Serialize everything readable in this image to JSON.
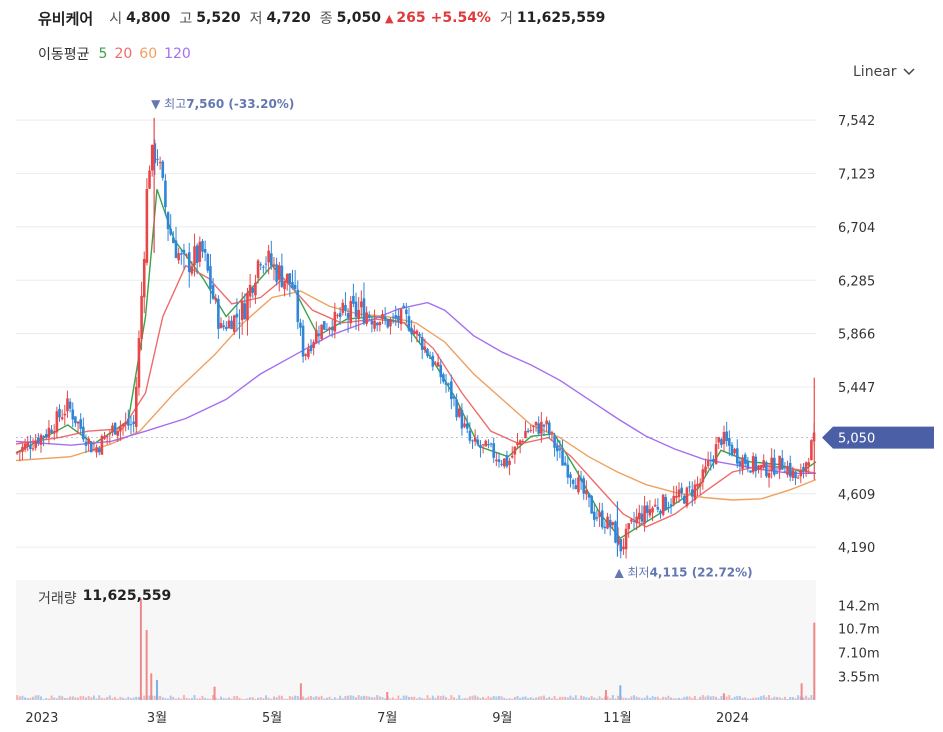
{
  "header": {
    "name": "유비케어",
    "open_label": "시",
    "open": "4,800",
    "high_label": "고",
    "high": "5,520",
    "low_label": "저",
    "low": "4,720",
    "close_label": "종",
    "close": "5,050",
    "change_arrow": "▲",
    "change": "265",
    "change_pct": "+5.54%",
    "volume_label": "거",
    "volume": "11,625,559"
  },
  "moving_average": {
    "label": "이동평균",
    "periods": [
      {
        "label": "5",
        "color": "#3aa34a"
      },
      {
        "label": "20",
        "color": "#ef6b6b"
      },
      {
        "label": "60",
        "color": "#f0a060"
      },
      {
        "label": "120",
        "color": "#a66ef0"
      }
    ]
  },
  "scale_selector": {
    "label": "Linear",
    "icon": "chevron-down-icon"
  },
  "colors": {
    "up": "#e8474a",
    "down": "#2f86d8",
    "current_badge": "#4a5fa5",
    "annotation": "#6477b0"
  },
  "chart_data": {
    "type": "candlestick",
    "y_ticks": [
      "7,542",
      "7,123",
      "6,704",
      "6,285",
      "5,866",
      "5,447",
      "4,609",
      "4,190"
    ],
    "y_tick_values": [
      7542,
      7123,
      6704,
      6285,
      5866,
      5447,
      4609,
      4190
    ],
    "ylim": [
      4050,
      7700
    ],
    "x_ticks": [
      "2023",
      "3월",
      "5월",
      "7월",
      "9월",
      "11월",
      "2024"
    ],
    "x_tick_months": [
      0,
      2,
      4,
      6,
      8,
      10,
      12
    ],
    "month_range": [
      -0.45,
      13.45
    ],
    "current_price": "5,050",
    "current_value": 5050,
    "high_annotation": {
      "arrow": "▼",
      "label": "최고",
      "value": "7,560 (-33.20%)",
      "price": 7560,
      "month": 1.95
    },
    "low_annotation": {
      "arrow": "▲",
      "label": "최저",
      "value": "4,115 (22.72%)",
      "price": 4115,
      "month": 10.0
    },
    "price_anchors": [
      [
        -0.45,
        4930
      ],
      [
        0.1,
        5100
      ],
      [
        0.45,
        5300
      ],
      [
        0.9,
        4950
      ],
      [
        1.3,
        5150
      ],
      [
        1.6,
        5150
      ],
      [
        1.75,
        6300
      ],
      [
        1.85,
        7200
      ],
      [
        2.0,
        7300
      ],
      [
        2.2,
        6700
      ],
      [
        2.45,
        6400
      ],
      [
        2.8,
        6500
      ],
      [
        3.1,
        5900
      ],
      [
        3.5,
        6050
      ],
      [
        3.8,
        6500
      ],
      [
        4.1,
        6350
      ],
      [
        4.35,
        6250
      ],
      [
        4.55,
        5700
      ],
      [
        4.8,
        5900
      ],
      [
        5.2,
        6000
      ],
      [
        5.6,
        6050
      ],
      [
        6.0,
        5950
      ],
      [
        6.3,
        6000
      ],
      [
        6.6,
        5800
      ],
      [
        7.1,
        5400
      ],
      [
        7.45,
        5000
      ],
      [
        7.75,
        4950
      ],
      [
        8.1,
        4850
      ],
      [
        8.4,
        5100
      ],
      [
        8.75,
        5150
      ],
      [
        9.0,
        4900
      ],
      [
        9.3,
        4700
      ],
      [
        9.6,
        4450
      ],
      [
        9.9,
        4350
      ],
      [
        10.05,
        4180
      ],
      [
        10.3,
        4400
      ],
      [
        10.6,
        4500
      ],
      [
        10.9,
        4550
      ],
      [
        11.2,
        4600
      ],
      [
        11.45,
        4700
      ],
      [
        11.8,
        5050
      ],
      [
        12.1,
        4900
      ],
      [
        12.5,
        4800
      ],
      [
        12.9,
        4850
      ],
      [
        13.15,
        4700
      ],
      [
        13.35,
        4960
      ],
      [
        13.45,
        5050
      ]
    ],
    "ma_series": [
      {
        "name": "5",
        "color": "#3aa34a",
        "points": [
          [
            -0.45,
            4930
          ],
          [
            0.45,
            5150
          ],
          [
            0.9,
            5000
          ],
          [
            1.5,
            5180
          ],
          [
            1.8,
            6000
          ],
          [
            2.0,
            7000
          ],
          [
            2.3,
            6600
          ],
          [
            2.8,
            6300
          ],
          [
            3.2,
            6000
          ],
          [
            3.6,
            6200
          ],
          [
            4.0,
            6400
          ],
          [
            4.4,
            6200
          ],
          [
            4.8,
            5850
          ],
          [
            5.3,
            5980
          ],
          [
            5.8,
            6000
          ],
          [
            6.3,
            5950
          ],
          [
            6.8,
            5650
          ],
          [
            7.2,
            5350
          ],
          [
            7.6,
            4980
          ],
          [
            8.1,
            4900
          ],
          [
            8.5,
            5060
          ],
          [
            8.9,
            5080
          ],
          [
            9.3,
            4780
          ],
          [
            9.7,
            4450
          ],
          [
            10.05,
            4260
          ],
          [
            10.4,
            4360
          ],
          [
            10.9,
            4500
          ],
          [
            11.4,
            4650
          ],
          [
            11.8,
            4950
          ],
          [
            12.3,
            4860
          ],
          [
            12.8,
            4840
          ],
          [
            13.2,
            4780
          ],
          [
            13.45,
            4860
          ]
        ]
      },
      {
        "name": "20",
        "color": "#ef6b6b",
        "points": [
          [
            -0.45,
            5000
          ],
          [
            0.3,
            5050
          ],
          [
            0.8,
            5100
          ],
          [
            1.4,
            5120
          ],
          [
            1.8,
            5400
          ],
          [
            2.1,
            6000
          ],
          [
            2.5,
            6400
          ],
          [
            2.9,
            6300
          ],
          [
            3.3,
            6100
          ],
          [
            3.8,
            6150
          ],
          [
            4.2,
            6300
          ],
          [
            4.7,
            6050
          ],
          [
            5.2,
            5950
          ],
          [
            5.8,
            5980
          ],
          [
            6.3,
            5950
          ],
          [
            6.8,
            5750
          ],
          [
            7.3,
            5400
          ],
          [
            7.8,
            5100
          ],
          [
            8.3,
            5000
          ],
          [
            8.8,
            5050
          ],
          [
            9.2,
            4900
          ],
          [
            9.7,
            4650
          ],
          [
            10.1,
            4450
          ],
          [
            10.5,
            4350
          ],
          [
            11.0,
            4450
          ],
          [
            11.5,
            4620
          ],
          [
            12.0,
            4780
          ],
          [
            12.5,
            4830
          ],
          [
            13.0,
            4810
          ],
          [
            13.45,
            4770
          ]
        ]
      },
      {
        "name": "60",
        "color": "#f0a060",
        "points": [
          [
            -0.45,
            4870
          ],
          [
            0.5,
            4900
          ],
          [
            1.2,
            5000
          ],
          [
            1.7,
            5100
          ],
          [
            2.3,
            5400
          ],
          [
            3.0,
            5700
          ],
          [
            3.5,
            5950
          ],
          [
            4.0,
            6150
          ],
          [
            4.5,
            6200
          ],
          [
            5.0,
            6080
          ],
          [
            5.5,
            6020
          ],
          [
            6.0,
            6000
          ],
          [
            6.5,
            5950
          ],
          [
            7.0,
            5800
          ],
          [
            7.5,
            5550
          ],
          [
            8.0,
            5350
          ],
          [
            8.5,
            5150
          ],
          [
            9.0,
            5050
          ],
          [
            9.5,
            4900
          ],
          [
            10.0,
            4780
          ],
          [
            10.5,
            4680
          ],
          [
            11.0,
            4620
          ],
          [
            11.5,
            4580
          ],
          [
            12.0,
            4560
          ],
          [
            12.5,
            4570
          ],
          [
            13.0,
            4640
          ],
          [
            13.45,
            4720
          ]
        ]
      },
      {
        "name": "120",
        "color": "#a66ef0",
        "points": [
          [
            -0.45,
            5020
          ],
          [
            0.5,
            4990
          ],
          [
            1.2,
            5020
          ],
          [
            1.8,
            5100
          ],
          [
            2.5,
            5200
          ],
          [
            3.2,
            5350
          ],
          [
            3.8,
            5550
          ],
          [
            4.4,
            5700
          ],
          [
            5.0,
            5850
          ],
          [
            5.6,
            5950
          ],
          [
            6.2,
            6060
          ],
          [
            6.7,
            6110
          ],
          [
            7.0,
            6050
          ],
          [
            7.5,
            5850
          ],
          [
            8.0,
            5720
          ],
          [
            8.5,
            5620
          ],
          [
            9.0,
            5500
          ],
          [
            9.5,
            5350
          ],
          [
            10.0,
            5200
          ],
          [
            10.5,
            5060
          ],
          [
            11.0,
            4960
          ],
          [
            11.5,
            4880
          ],
          [
            12.0,
            4840
          ],
          [
            12.5,
            4800
          ],
          [
            13.0,
            4770
          ],
          [
            13.45,
            4770
          ]
        ]
      }
    ],
    "volume_panel": {
      "title_label": "거래량",
      "title_value": "11,625,559",
      "y_ticks": [
        "14.2m",
        "10.7m",
        "7.10m",
        "3.55m"
      ],
      "y_tick_values": [
        14.2,
        10.7,
        7.1,
        3.55
      ],
      "ylim": [
        0,
        16.5
      ],
      "spikes": [
        [
          1.72,
          15.2,
          "up"
        ],
        [
          1.82,
          10.5,
          "up"
        ],
        [
          1.9,
          4.0,
          "up"
        ],
        [
          2.0,
          3.0,
          "down"
        ],
        [
          3.0,
          2.0,
          "up"
        ],
        [
          4.5,
          2.5,
          "up"
        ],
        [
          6.0,
          1.2,
          "up"
        ],
        [
          9.8,
          1.5,
          "up"
        ],
        [
          10.05,
          2.2,
          "down"
        ],
        [
          11.85,
          1.0,
          "up"
        ],
        [
          13.2,
          2.5,
          "up"
        ],
        [
          13.42,
          11.6,
          "up"
        ]
      ]
    }
  }
}
